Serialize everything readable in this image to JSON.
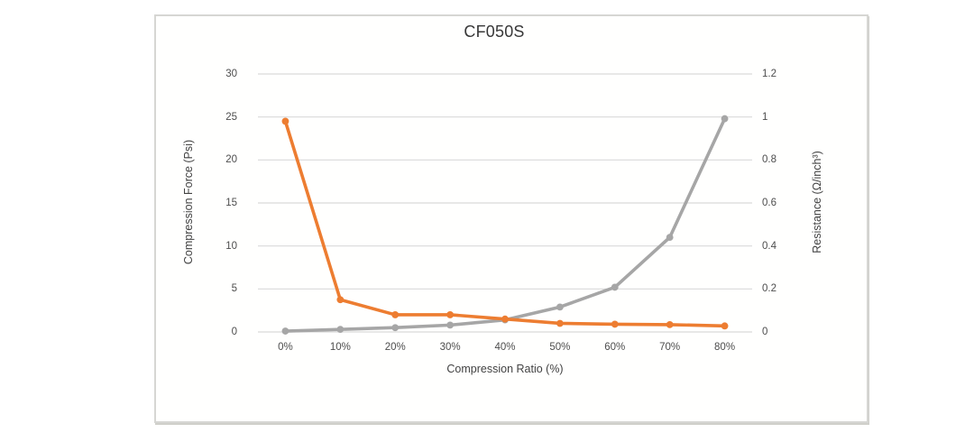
{
  "chart_data": {
    "type": "line",
    "title": "CF050S",
    "categories": [
      "0%",
      "10%",
      "20%",
      "30%",
      "40%",
      "50%",
      "60%",
      "70%",
      "80%"
    ],
    "series": [
      {
        "name": "Compression Force",
        "axis": "left",
        "color": "#a6a6a6",
        "values": [
          0.1,
          0.3,
          0.5,
          0.8,
          1.4,
          2.9,
          5.2,
          11,
          24.8
        ]
      },
      {
        "name": "Resistance",
        "axis": "right",
        "color": "#ed7d31",
        "values": [
          0.98,
          0.15,
          0.08,
          0.08,
          0.06,
          0.04,
          0.036,
          0.034,
          0.028
        ]
      }
    ],
    "xlabel": "Compression Ratio  (%)",
    "ylabel_left": "Compression Force  (Psi)",
    "ylabel_right": "Resistance (Ω/inch³)",
    "ylim_left": [
      0,
      30
    ],
    "ylim_right": [
      0,
      1.2
    ],
    "y_ticks_left": [
      "30",
      "25",
      "20",
      "15",
      "10",
      "5",
      "0"
    ],
    "y_ticks_right": [
      "1.2",
      "1",
      "0.8",
      "0.6",
      "0.4",
      "0.2",
      "0"
    ],
    "grid": "horizontal",
    "gridline_color": "#d9d9d9",
    "legend": "none"
  }
}
